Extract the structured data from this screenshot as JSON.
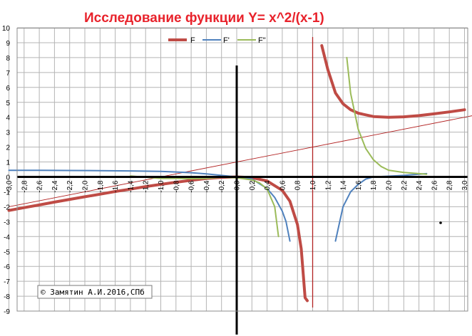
{
  "title": "Исследование функции Y= x^2/(x-1)",
  "copyright": "© Замятин А.И.2016,СПб",
  "colors": {
    "title": "#e8222b",
    "F": "#bf4b45",
    "F1": "#4f81bd",
    "F2": "#9bbb59",
    "asymptote": "#b22222",
    "grid": "#b4b4b4",
    "axis": "#000000"
  },
  "chart_data": {
    "type": "line",
    "title": "Исследование функции Y= x^2/(x-1)",
    "xlim": [
      -3.0,
      3.1
    ],
    "ylim": [
      -9,
      10
    ],
    "grid": true,
    "legend_position": "top-center",
    "x_ticks": [
      "-3,0",
      "-2,8",
      "-2,6",
      "-2,4",
      "-2,2",
      "-2,0",
      "-1,8",
      "-1,6",
      "-1,4",
      "-1,2",
      "-1,0",
      "-0,8",
      "-0,6",
      "-0,4",
      "-0,2",
      "0,0",
      "0,2",
      "0,4",
      "0,6",
      "0,8",
      "1,0",
      "1,2",
      "1,4",
      "1,6",
      "1,8",
      "2,0",
      "2,2",
      "2,4",
      "2,6",
      "2,8",
      "3,0"
    ],
    "y_ticks": [
      10,
      9,
      8,
      7,
      6,
      5,
      4,
      3,
      2,
      1,
      0,
      -1,
      -2,
      -3,
      -4,
      -5,
      -6,
      -7,
      -8,
      -9
    ],
    "series": [
      {
        "name": "F",
        "color": "#bf4b45",
        "x": [
          -3.0,
          -2.8,
          -2.6,
          -2.4,
          -2.2,
          -2.0,
          -1.8,
          -1.6,
          -1.4,
          -1.2,
          -1.0,
          -0.8,
          -0.6,
          -0.4,
          -0.2,
          0.0,
          0.2,
          0.4,
          0.6,
          0.7,
          0.8,
          0.85,
          0.9,
          0.93
        ],
        "y": [
          -2.25,
          -2.06,
          -1.88,
          -1.69,
          -1.51,
          -1.33,
          -1.16,
          -0.98,
          -0.82,
          -0.65,
          -0.5,
          -0.36,
          -0.23,
          -0.11,
          -0.03,
          0.0,
          -0.05,
          -0.27,
          -0.9,
          -1.63,
          -3.2,
          -4.82,
          -8.1,
          -8.3
        ]
      },
      {
        "name": "F",
        "color": "#bf4b45",
        "x": [
          1.12,
          1.2,
          1.3,
          1.4,
          1.5,
          1.6,
          1.8,
          2.0,
          2.2,
          2.4,
          2.6,
          2.8,
          3.0
        ],
        "y": [
          8.8,
          7.2,
          5.63,
          4.9,
          4.5,
          4.27,
          4.05,
          4.0,
          4.03,
          4.11,
          4.23,
          4.36,
          4.5
        ]
      },
      {
        "name": "F'",
        "color": "#4f81bd",
        "x": [
          -3.0,
          -2.6,
          -2.2,
          -1.8,
          -1.4,
          -1.0,
          -0.8,
          -0.6,
          -0.4,
          -0.2,
          0.0,
          0.2,
          0.4,
          0.5,
          0.6,
          0.65,
          0.7
        ],
        "y": [
          0.44,
          0.44,
          0.43,
          0.42,
          0.4,
          0.37,
          0.33,
          0.28,
          0.2,
          0.1,
          0.0,
          -0.14,
          -0.78,
          -1.38,
          -2.3,
          -3.0,
          -4.3
        ]
      },
      {
        "name": "F'",
        "color": "#4f81bd",
        "x": [
          1.3,
          1.4,
          1.5,
          1.6,
          1.7,
          1.8,
          2.0,
          2.2,
          2.5
        ],
        "y": [
          -4.3,
          -2.0,
          -1.0,
          -0.5,
          -0.15,
          0.0,
          0.05,
          0.1,
          0.22
        ]
      },
      {
        "name": "F\"",
        "color": "#9bbb59",
        "x": [
          -1.4,
          -1.0,
          -0.8,
          -0.6,
          -0.4,
          -0.2,
          0.0,
          0.2,
          0.3,
          0.4,
          0.5,
          0.55
        ],
        "y": [
          0.06,
          -0.1,
          -0.1,
          -0.12,
          -0.1,
          -0.02,
          -0.06,
          -0.2,
          -0.4,
          -0.8,
          -2.0,
          -4.0
        ]
      },
      {
        "name": "F\"",
        "color": "#9bbb59",
        "x": [
          1.45,
          1.5,
          1.6,
          1.7,
          1.8,
          1.9,
          2.0,
          2.2,
          2.4,
          2.5
        ],
        "y": [
          8.0,
          5.6,
          3.2,
          1.9,
          1.15,
          0.7,
          0.45,
          0.3,
          0.22,
          0.18
        ]
      }
    ],
    "asymptotes": [
      {
        "kind": "vertical",
        "x": 1.0
      },
      {
        "kind": "oblique",
        "equation": "y = x + 1"
      }
    ]
  }
}
